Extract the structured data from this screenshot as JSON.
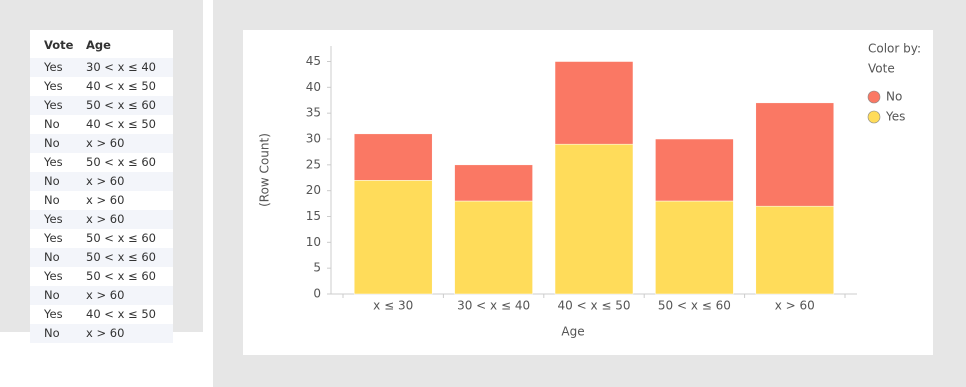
{
  "table": {
    "columns": [
      "Vote",
      "Age"
    ],
    "rows": [
      [
        "Yes",
        "30 < x ≤ 40"
      ],
      [
        "Yes",
        "40 < x ≤ 50"
      ],
      [
        "Yes",
        "50 < x ≤ 60"
      ],
      [
        "No",
        "40 < x ≤ 50"
      ],
      [
        "No",
        "x > 60"
      ],
      [
        "Yes",
        "50 < x ≤ 60"
      ],
      [
        "No",
        "x > 60"
      ],
      [
        "No",
        "x > 60"
      ],
      [
        "Yes",
        "x > 60"
      ],
      [
        "Yes",
        "50 < x ≤ 60"
      ],
      [
        "No",
        "50 < x ≤ 60"
      ],
      [
        "Yes",
        "50 < x ≤ 60"
      ],
      [
        "No",
        "x > 60"
      ],
      [
        "Yes",
        "40 < x ≤ 50"
      ],
      [
        "No",
        "x > 60"
      ]
    ]
  },
  "chart_data": {
    "type": "stacked-bar",
    "x_label": "Age",
    "y_label": "(Row Count)",
    "legend_title": "Color by:",
    "legend_subtitle": "Vote",
    "categories": [
      "x ≤ 30",
      "30 < x ≤ 40",
      "40 < x ≤ 50",
      "50 < x ≤ 60",
      "x > 60"
    ],
    "series": [
      {
        "name": "No",
        "color": "#fa7864",
        "values": [
          9,
          7,
          16,
          12,
          20
        ]
      },
      {
        "name": "Yes",
        "color": "#ffdc5a",
        "values": [
          22,
          18,
          29,
          18,
          17
        ]
      }
    ],
    "ylim": [
      0,
      48
    ],
    "yticks": [
      0,
      5,
      10,
      15,
      20,
      25,
      30,
      35,
      40,
      45
    ]
  }
}
